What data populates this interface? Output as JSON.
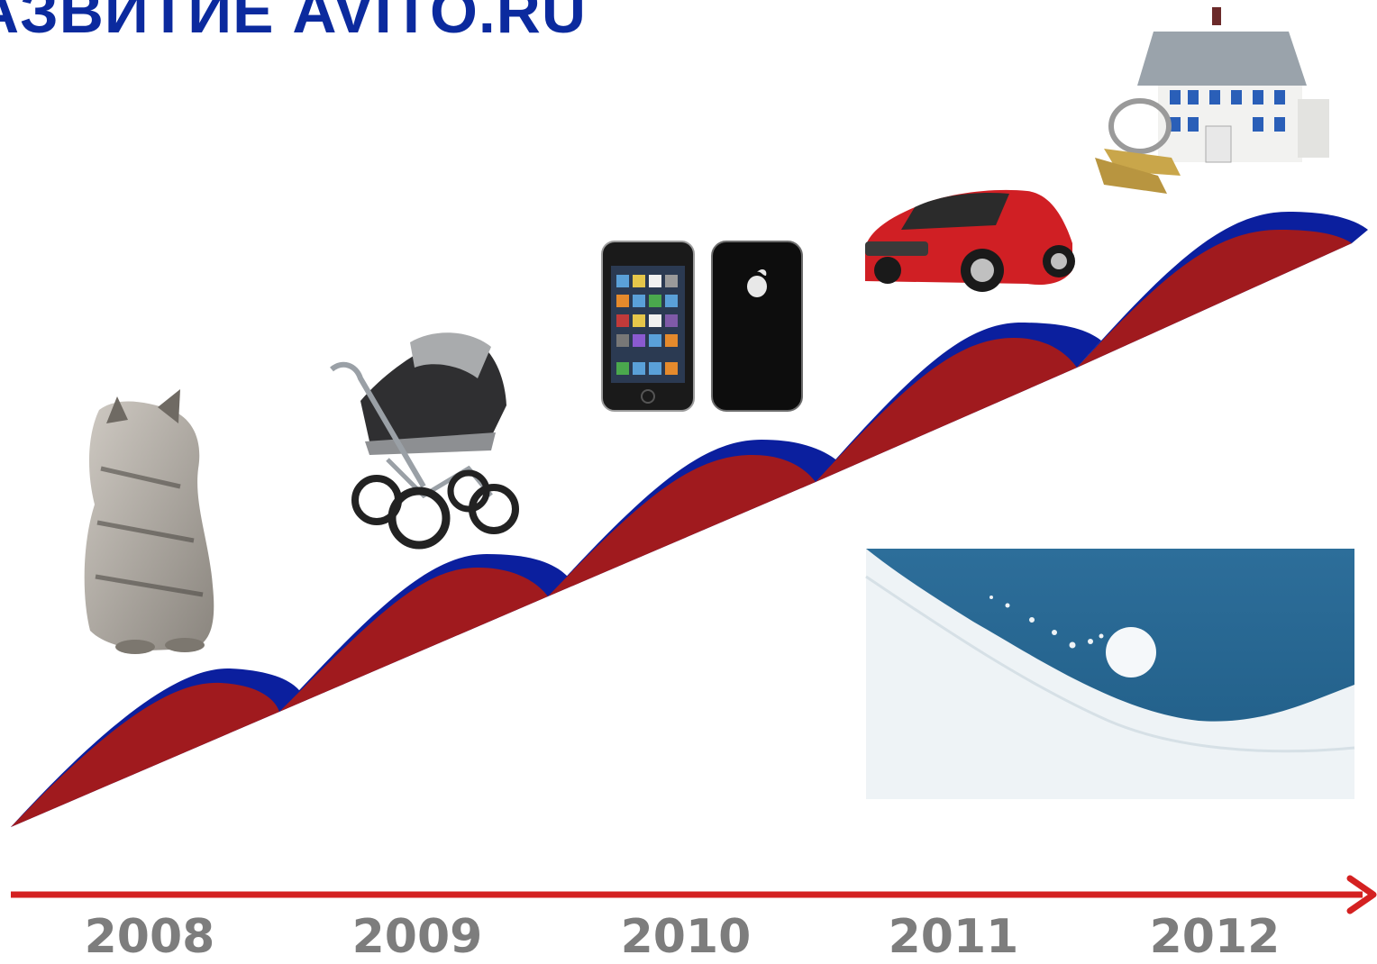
{
  "title": "АЗВИТИЕ AVITO.RU",
  "years": [
    "2008",
    "2009",
    "2010",
    "2011",
    "2012"
  ],
  "colors": {
    "title": "#0b2a9e",
    "wave_red": "#a01a1e",
    "wave_blue": "#0b1f9e",
    "axis": "#d42121",
    "year": "#7d7d7d"
  },
  "illustrations": [
    "kitten",
    "baby-stroller",
    "smartphones",
    "red-hatchback-car",
    "house-with-keys",
    "snowball-rolling-downhill"
  ]
}
